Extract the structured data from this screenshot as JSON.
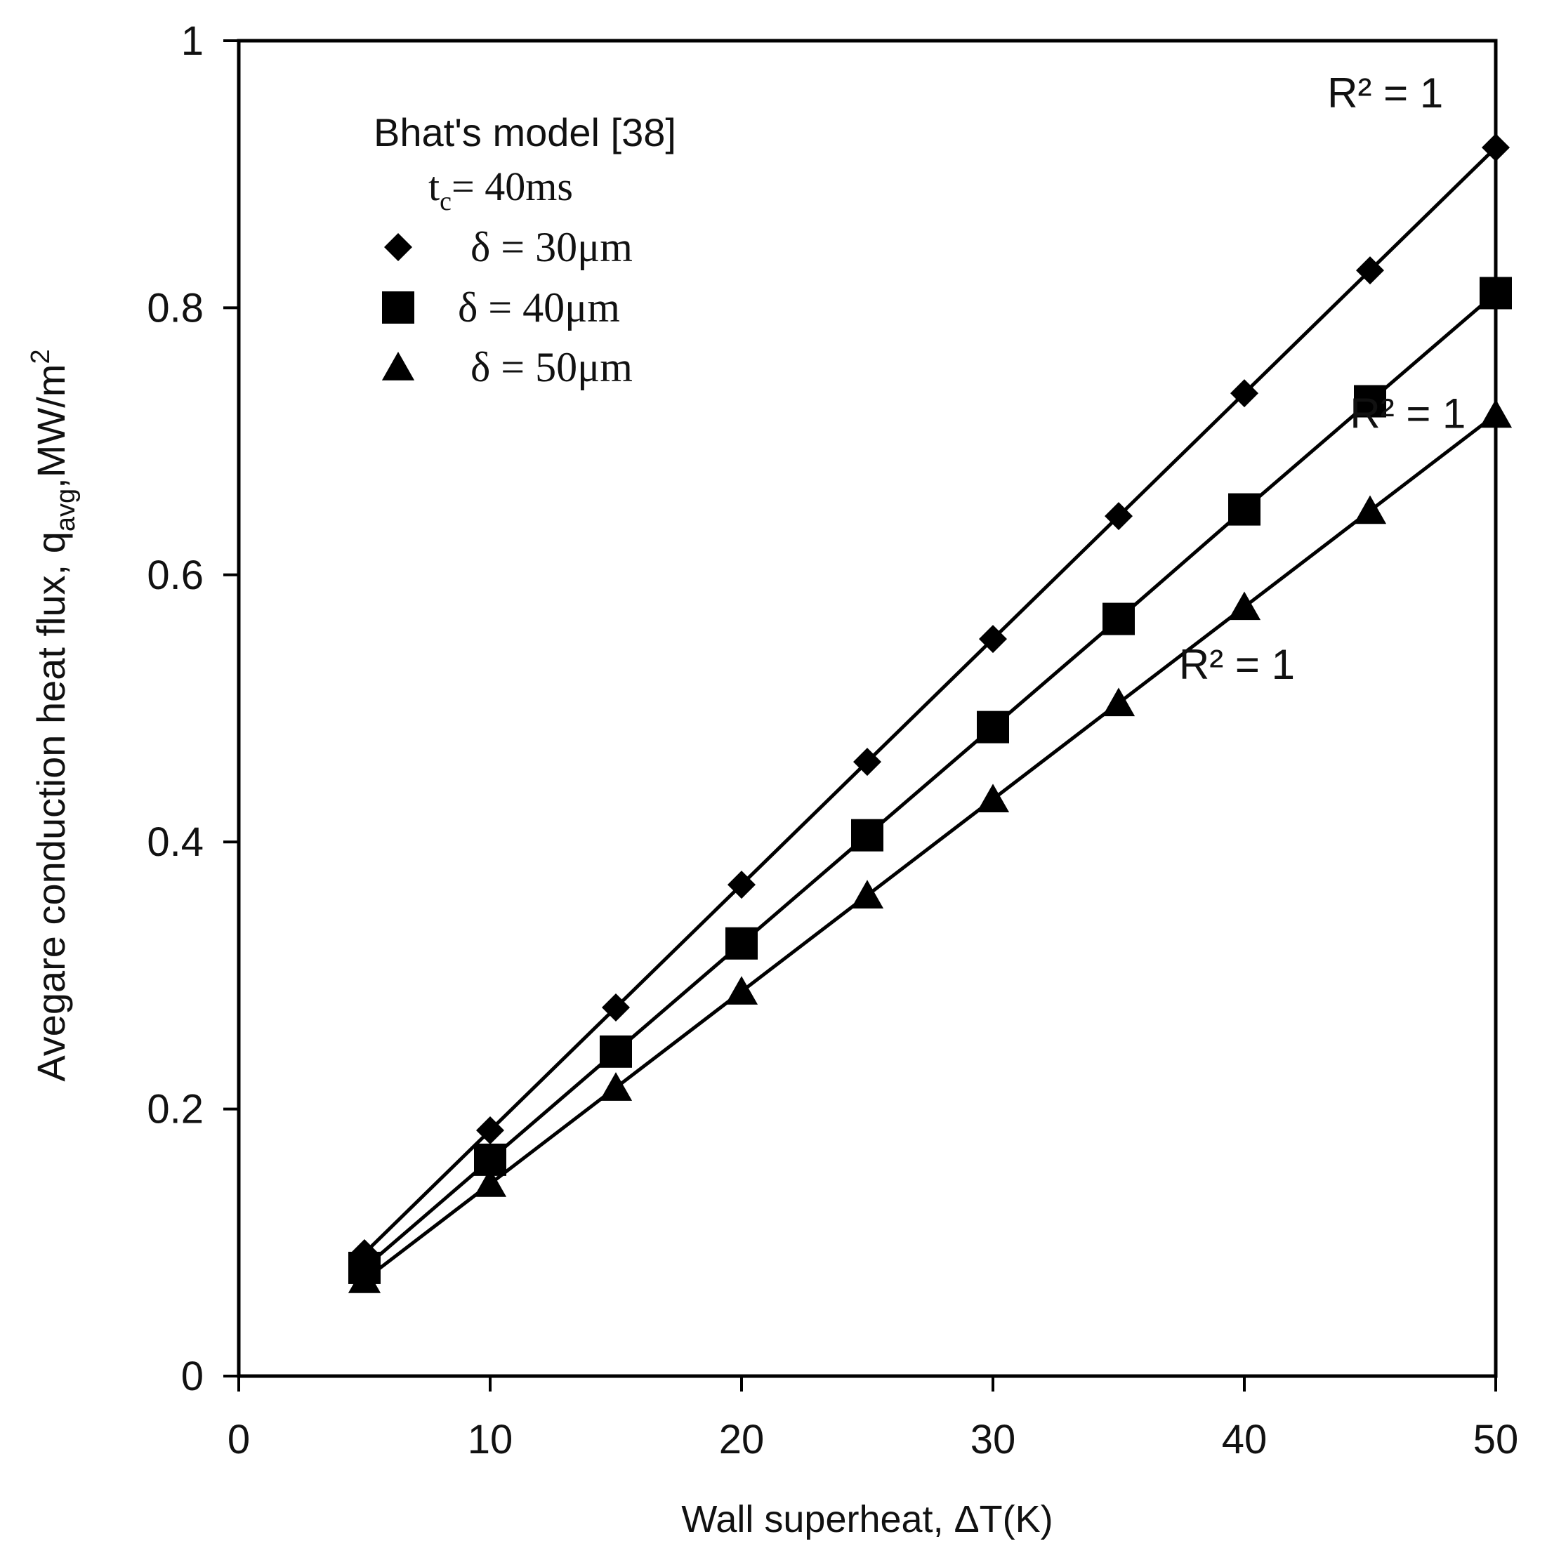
{
  "chart_data": {
    "type": "line",
    "xlabel": "Wall superheat, ΔT(K)",
    "ylabel_main": "Avegare conduction heat flux, q",
    "ylabel_sub": "avg",
    "ylabel_rest": ",MW/m",
    "ylabel_sup": "2",
    "xlim": [
      0,
      50
    ],
    "ylim": [
      0,
      1
    ],
    "xticks": [
      0,
      10,
      20,
      30,
      40,
      50
    ],
    "xtick_labels": [
      "0",
      "10",
      "20",
      "30",
      "40",
      "50"
    ],
    "yticks": [
      0,
      0.2,
      0.4,
      0.6,
      0.8,
      1
    ],
    "ytick_labels": [
      "0",
      "0.2",
      "0.4",
      "0.6",
      "0.8",
      "1"
    ],
    "grid": false,
    "legend_position": "top-left",
    "legend_title": "Bhat's model [38]",
    "legend_subtitle_t": "t",
    "legend_subtitle_sub": "c",
    "legend_subtitle_rest": "= 40ms",
    "x": [
      5,
      10,
      15,
      20,
      25,
      30,
      35,
      40,
      45,
      50
    ],
    "series": [
      {
        "name": "δ = 30μm",
        "marker": "diamond",
        "values": [
          0.092,
          0.184,
          0.276,
          0.368,
          0.46,
          0.552,
          0.644,
          0.736,
          0.828,
          0.92
        ],
        "r2_label": "R² = 1",
        "r2_anchor": [
          43.3,
          0.95
        ]
      },
      {
        "name": "δ = 40μm",
        "marker": "square",
        "values": [
          0.081,
          0.162,
          0.243,
          0.324,
          0.405,
          0.486,
          0.567,
          0.649,
          0.73,
          0.811
        ],
        "r2_label": "R² = 1",
        "r2_anchor": [
          44.2,
          0.71
        ]
      },
      {
        "name": "δ = 50μm",
        "marker": "triangle",
        "values": [
          0.072,
          0.144,
          0.216,
          0.288,
          0.36,
          0.432,
          0.504,
          0.576,
          0.648,
          0.72
        ],
        "r2_label": "R² = 1",
        "r2_anchor": [
          37.4,
          0.522
        ]
      }
    ]
  }
}
